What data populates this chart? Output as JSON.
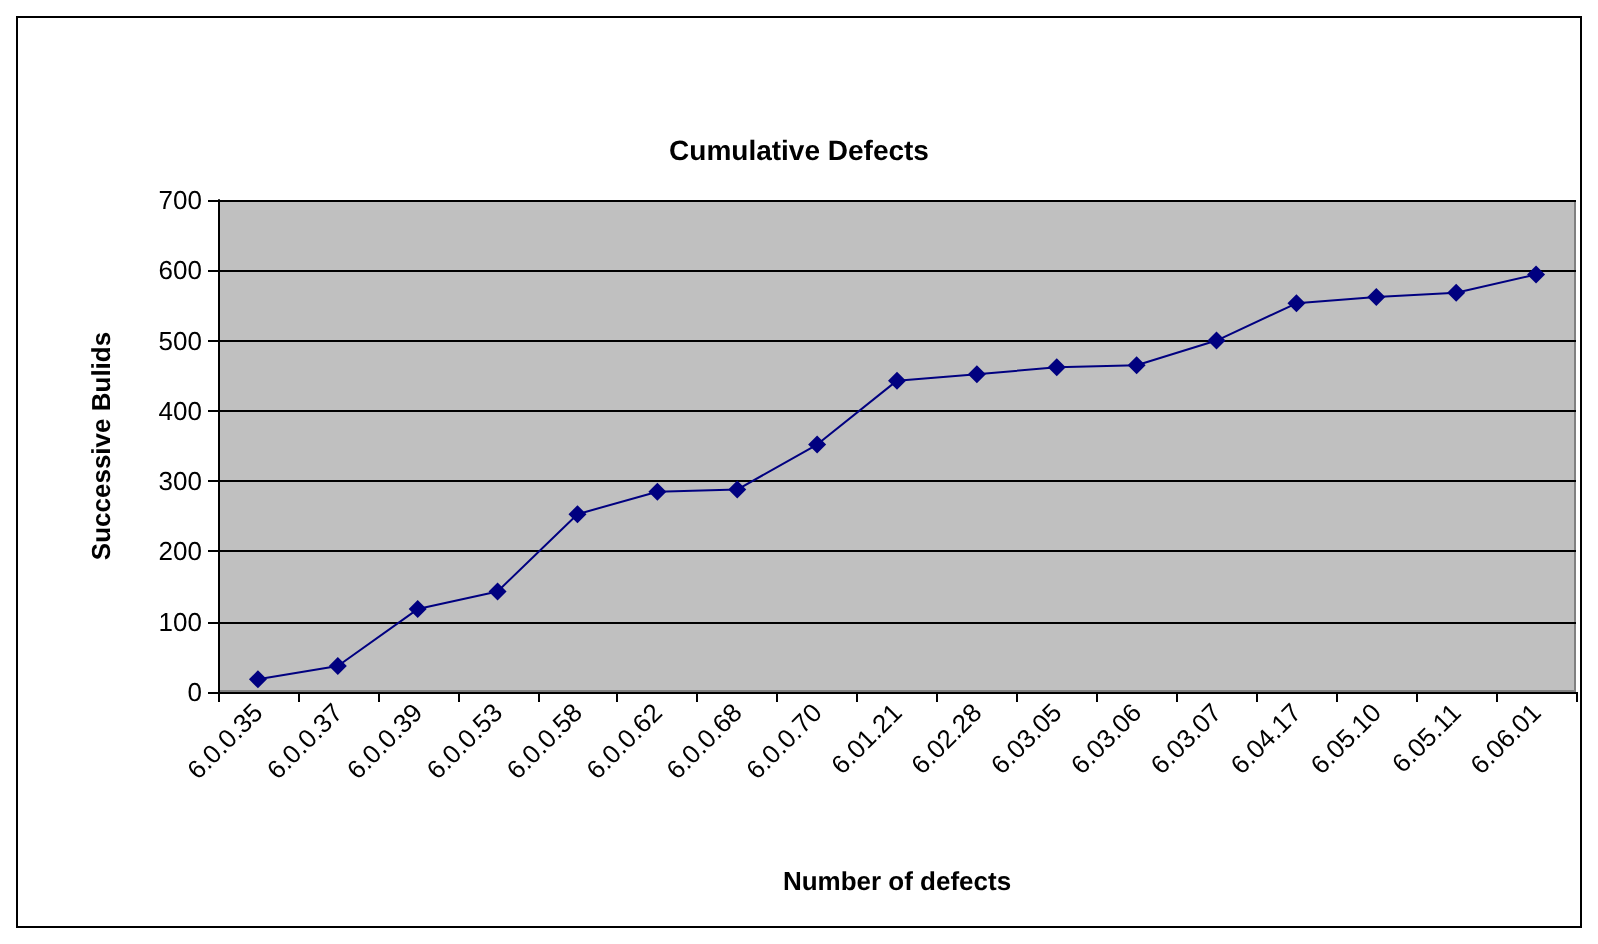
{
  "chart_data": {
    "type": "line",
    "title": "Cumulative Defects",
    "xlabel": "Number of defects",
    "ylabel": "Successive Bulids",
    "categories": [
      "6.0.0.35",
      "6.0.0.37",
      "6.0.0.39",
      "6.0.0.53",
      "6.0.0.58",
      "6.0.0.62",
      "6.0.0.68",
      "6.0.0.70",
      "6.01.21",
      "6.02.28",
      "6.03.05",
      "6.03.06",
      "6.03.07",
      "6.04.17",
      "6.05.10",
      "6.05.11",
      "6.06.01"
    ],
    "series": [
      {
        "color": "#000080",
        "values": [
          18,
          37,
          118,
          143,
          253,
          285,
          288,
          352,
          443,
          452,
          462,
          465,
          500,
          553,
          562,
          568,
          594
        ]
      }
    ],
    "ylim": [
      0,
      700
    ],
    "yticks": [
      0,
      100,
      200,
      300,
      400,
      500,
      600,
      700
    ],
    "grid": "y",
    "marker": "diamond",
    "line_style": "solid"
  }
}
